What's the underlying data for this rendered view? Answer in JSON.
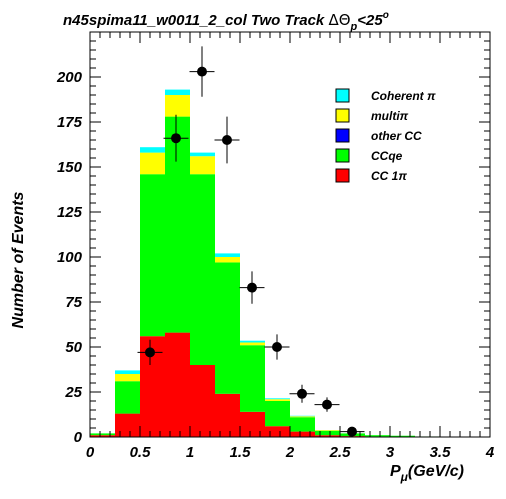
{
  "chart_data": {
    "type": "bar",
    "stacked": true,
    "title": "n45spima11_w0011_2_col Two Track ΔΘp<25°",
    "title_parts": {
      "main": "n45spima11_w0011_2_col Two Track ",
      "symbol": "ΔΘ",
      "sub": "p",
      "rest": "<25",
      "sup": "o"
    },
    "xlabel": "Pμ(GeV/c)",
    "xlabel_parts": {
      "main": "P",
      "sub": "μ",
      "rest": "(GeV/c)"
    },
    "ylabel": "Number of Events",
    "xlim": [
      0,
      4
    ],
    "ylim": [
      0,
      225
    ],
    "x_ticks": [
      0,
      0.5,
      1,
      1.5,
      2,
      2.5,
      3,
      3.5,
      4
    ],
    "x_tick_labels": [
      "0",
      "0.5",
      "1",
      "1.5",
      "2",
      "2.5",
      "3",
      "3.5",
      "4"
    ],
    "y_ticks": [
      0,
      25,
      50,
      75,
      100,
      125,
      150,
      175,
      200
    ],
    "y_tick_labels": [
      "0",
      "25",
      "50",
      "75",
      "100",
      "125",
      "150",
      "175",
      "200"
    ],
    "grid": false,
    "legend_position": "top-right",
    "bin_edges": [
      0.0,
      0.25,
      0.5,
      0.75,
      1.0,
      1.25,
      1.5,
      1.75,
      2.0,
      2.25,
      2.5,
      2.75,
      3.0,
      3.25,
      3.5,
      3.75,
      4.0
    ],
    "series": [
      {
        "name": "CC 1π",
        "color": "#ff0000",
        "values": [
          1,
          13,
          56,
          58,
          40,
          24,
          14,
          6,
          3,
          1,
          0.5,
          0.3,
          0.2,
          0,
          0,
          0
        ]
      },
      {
        "name": "CCqe",
        "color": "#00ff00",
        "values": [
          1,
          18,
          90,
          120,
          106,
          73,
          37,
          14,
          8,
          2.5,
          1.5,
          0.7,
          0.5,
          0.3,
          0,
          0
        ]
      },
      {
        "name": "other CC",
        "color": "#0000ff",
        "values": [
          0,
          0,
          0,
          0,
          0,
          0,
          0,
          0,
          0,
          0,
          0,
          0,
          0,
          0,
          0,
          0
        ]
      },
      {
        "name": "multiπ",
        "color": "#ffff00",
        "values": [
          0,
          4,
          12,
          12,
          10,
          3,
          1.5,
          1,
          0.5,
          0.3,
          0,
          0,
          0,
          0,
          0,
          0
        ]
      },
      {
        "name": "Coherent π",
        "color": "#00ffff",
        "values": [
          0,
          2,
          3,
          3,
          2,
          2,
          1,
          0.5,
          0.3,
          0,
          0,
          0,
          0,
          0,
          0,
          0
        ]
      }
    ],
    "data_points": [
      {
        "x": 0.6,
        "y": 47,
        "xerr": 0.125,
        "yerr": 7
      },
      {
        "x": 0.86,
        "y": 166,
        "xerr": 0.125,
        "yerr": 13
      },
      {
        "x": 1.12,
        "y": 203,
        "xerr": 0.125,
        "yerr": 14
      },
      {
        "x": 1.37,
        "y": 165,
        "xerr": 0.125,
        "yerr": 13
      },
      {
        "x": 1.62,
        "y": 83,
        "xerr": 0.125,
        "yerr": 9
      },
      {
        "x": 1.87,
        "y": 50,
        "xerr": 0.125,
        "yerr": 7
      },
      {
        "x": 2.12,
        "y": 24,
        "xerr": 0.125,
        "yerr": 5
      },
      {
        "x": 2.37,
        "y": 18,
        "xerr": 0.125,
        "yerr": 4
      },
      {
        "x": 2.62,
        "y": 3,
        "xerr": 0.125,
        "yerr": 2
      }
    ],
    "legend_order": [
      "Coherent π",
      "multiπ",
      "other CC",
      "CCqe",
      "CC 1π"
    ]
  }
}
